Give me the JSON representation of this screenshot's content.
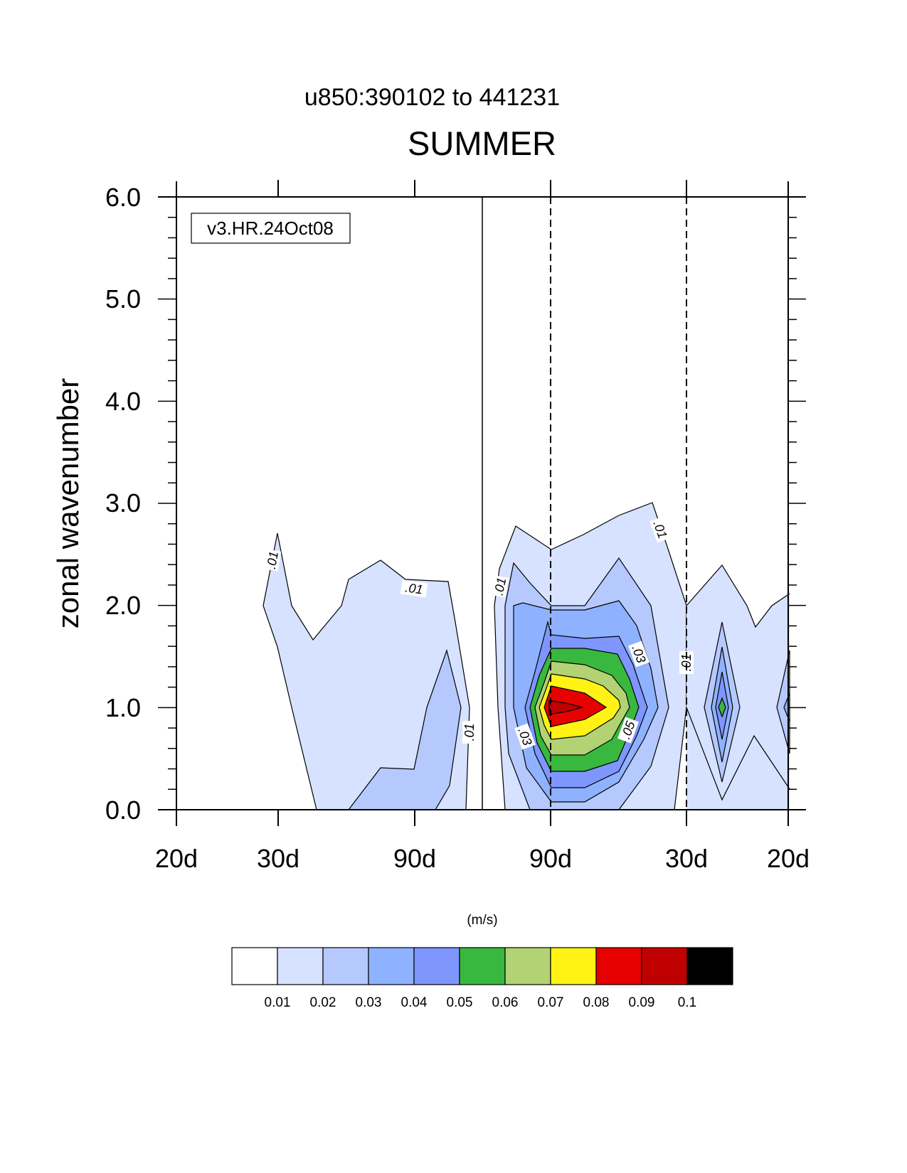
{
  "chart_data": {
    "type": "heatmap",
    "subtitle": "u850:390102 to 441231",
    "title": "SUMMER",
    "ylabel": "zonal wavenumber",
    "ylim": [
      0,
      6
    ],
    "y_ticks": [
      "0.0",
      "1.0",
      "2.0",
      "3.0",
      "4.0",
      "5.0",
      "6.0"
    ],
    "x_ticks": [
      "20d",
      "30d",
      "90d",
      "90d",
      "30d",
      "20d"
    ],
    "legend_box": "v3.HR.24Oct08",
    "units": "(m/s)",
    "contour_levels": [
      "0.01",
      "0.02",
      "0.03",
      "0.04",
      "0.05",
      "0.06",
      "0.07",
      "0.08",
      "0.09",
      "0.1"
    ],
    "contour_labels": [
      ".01",
      ".01",
      ".01",
      ".01",
      ".01",
      ".03",
      ".03",
      ".05",
      ".01"
    ],
    "colors": [
      "#ffffff",
      "#d6e2ff",
      "#b5c9ff",
      "#8eb2ff",
      "#7f96ff",
      "#38b83e",
      "#b3d274",
      "#fff214",
      "#e60000",
      "#c00000",
      "#000000"
    ],
    "peak": {
      "wavenumber": 1.0,
      "value_range": [
        "0.09",
        "0.1"
      ]
    },
    "grid": false
  }
}
